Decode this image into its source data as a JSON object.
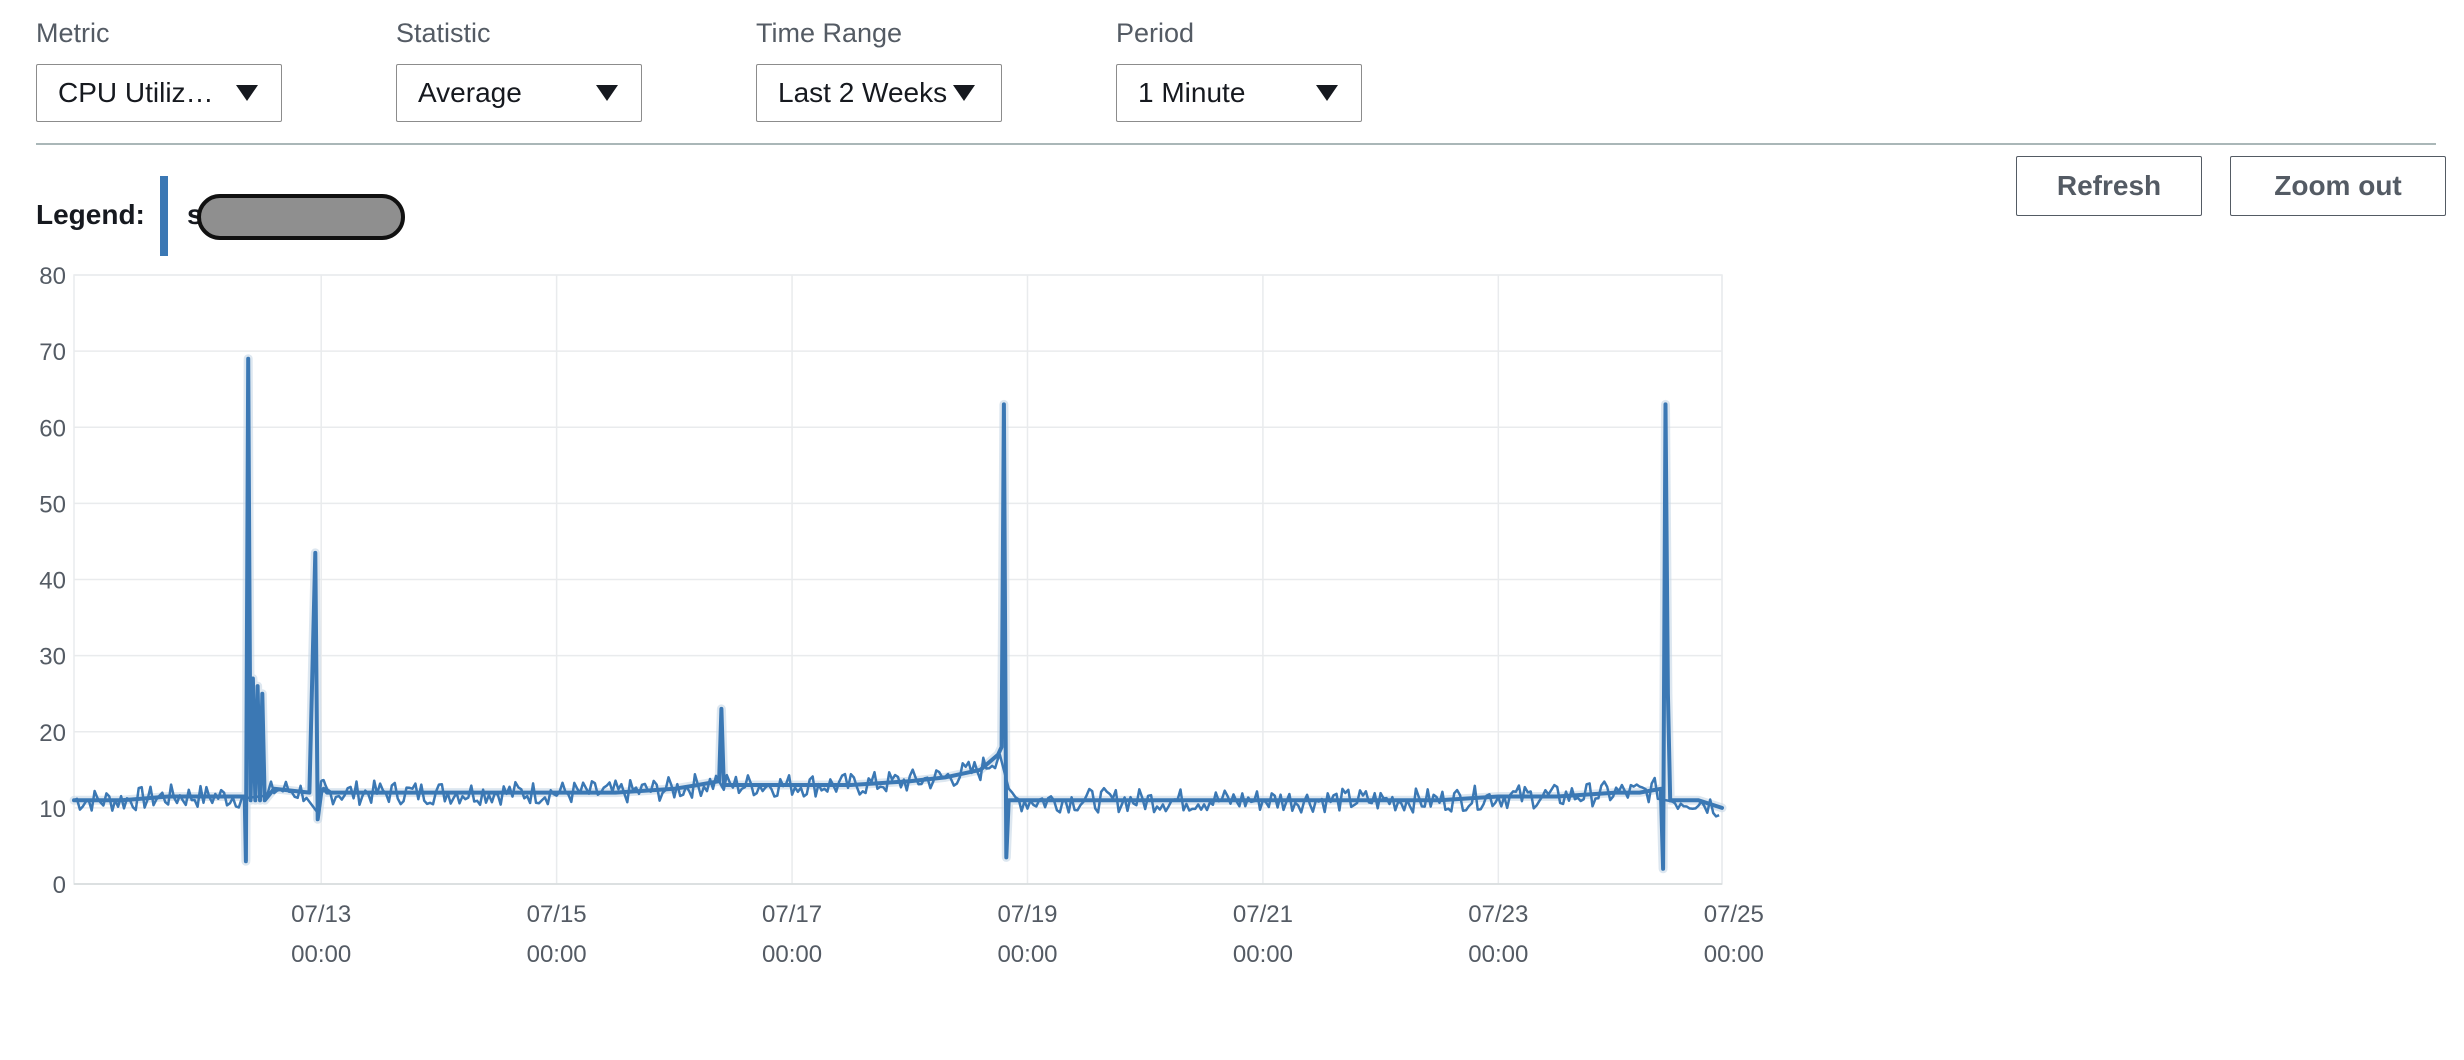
{
  "controls": {
    "metric": {
      "label": "Metric",
      "value": "CPU Utiliz…"
    },
    "statistic": {
      "label": "Statistic",
      "value": "Average"
    },
    "time_range": {
      "label": "Time Range",
      "value": "Last 2 Weeks"
    },
    "period": {
      "label": "Period",
      "value": "1 Minute"
    }
  },
  "legend": {
    "label": "Legend:",
    "series_text": "s",
    "series_color": "#3b78b4",
    "redaction_color": "#8f8f8f"
  },
  "buttons": {
    "refresh": "Refresh",
    "zoom_out": "Zoom out"
  },
  "colors": {
    "line": "#3b78b4",
    "grid": "#e9ebed",
    "axis_text": "#545b64"
  },
  "chart_data": {
    "type": "line",
    "ylim": [
      0,
      80
    ],
    "yticks": [
      0,
      10,
      20,
      30,
      40,
      50,
      60,
      70,
      80
    ],
    "xlim": [
      10.9,
      24.9
    ],
    "xticks": [
      {
        "value": 13,
        "line1": "07/13",
        "line2": "00:00"
      },
      {
        "value": 15,
        "line1": "07/15",
        "line2": "00:00"
      },
      {
        "value": 17,
        "line1": "07/17",
        "line2": "00:00"
      },
      {
        "value": 19,
        "line1": "07/19",
        "line2": "00:00"
      },
      {
        "value": 21,
        "line1": "07/21",
        "line2": "00:00"
      },
      {
        "value": 23,
        "line1": "07/23",
        "line2": "00:00"
      },
      {
        "value": 25,
        "line1": "07/25",
        "line2": "00:00"
      }
    ],
    "grid": true,
    "series": [
      {
        "values_note": "",
        "x": [
          10.9,
          11.3,
          11.7,
          12.1,
          12.35,
          12.36,
          12.38,
          12.4,
          12.42,
          12.44,
          12.46,
          12.48,
          12.5,
          12.52,
          12.6,
          12.9,
          12.95,
          12.97,
          13.0,
          13.02,
          13.05,
          13.5,
          14.0,
          14.5,
          15.0,
          15.5,
          16.0,
          16.2,
          16.38,
          16.4,
          16.42,
          16.6,
          17.0,
          17.5,
          18.0,
          18.3,
          18.6,
          18.75,
          18.78,
          18.8,
          18.82,
          18.84,
          18.9,
          19.2,
          19.6,
          20.0,
          20.5,
          21.0,
          21.5,
          22.0,
          22.5,
          23.0,
          23.5,
          24.0,
          24.2,
          24.38,
          24.4,
          24.42,
          24.44,
          24.46,
          24.5,
          24.7,
          24.9
        ],
        "y": [
          11,
          11,
          11.5,
          11.5,
          11.5,
          3,
          69,
          11,
          27,
          11,
          26,
          11,
          25,
          11,
          12.5,
          12,
          43.5,
          8.5,
          12,
          12.5,
          12,
          12,
          12,
          12,
          12,
          12,
          12.5,
          13,
          13.5,
          23,
          13,
          13,
          13,
          13,
          13.5,
          14,
          15,
          17,
          18,
          63,
          3.5,
          11,
          11,
          11,
          11,
          11,
          11,
          11,
          11,
          11,
          11,
          11.5,
          11.5,
          12,
          12,
          12.5,
          2,
          63,
          25,
          11,
          11,
          11,
          10
        ]
      }
    ]
  }
}
